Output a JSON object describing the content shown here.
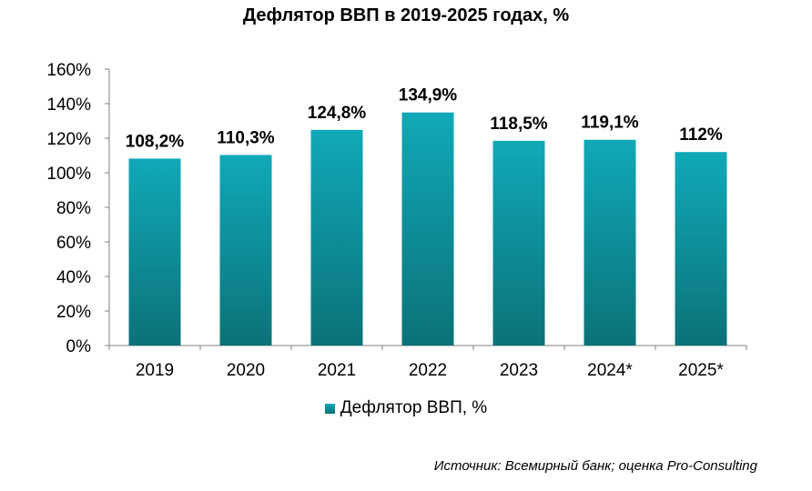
{
  "chart_data": {
    "type": "bar",
    "title": "Дефлятор ВВП в 2019-2025 годах, %",
    "categories": [
      "2019",
      "2020",
      "2021",
      "2022",
      "2023",
      "2024*",
      "2025*"
    ],
    "series": [
      {
        "name": "Дефлятор ВВП, %",
        "values": [
          108.2,
          110.3,
          124.8,
          134.9,
          118.5,
          119.1,
          112
        ],
        "labels": [
          "108,2%",
          "110,3%",
          "124,8%",
          "134,9%",
          "118,5%",
          "119,1%",
          "112%"
        ]
      }
    ],
    "ylim": [
      0,
      160
    ],
    "yticks": [
      0,
      20,
      40,
      60,
      80,
      100,
      120,
      140,
      160
    ],
    "ytick_labels": [
      "0%",
      "20%",
      "40%",
      "60%",
      "80%",
      "100%",
      "120%",
      "140%",
      "160%"
    ],
    "grid": false,
    "legend_position": "bottom",
    "bar_color_top": "#10a9b8",
    "bar_color_bottom": "#0b7278",
    "axis_color": "#808080"
  },
  "source_note": "Источник: Всемирный банк; оценка Pro-Consulting"
}
